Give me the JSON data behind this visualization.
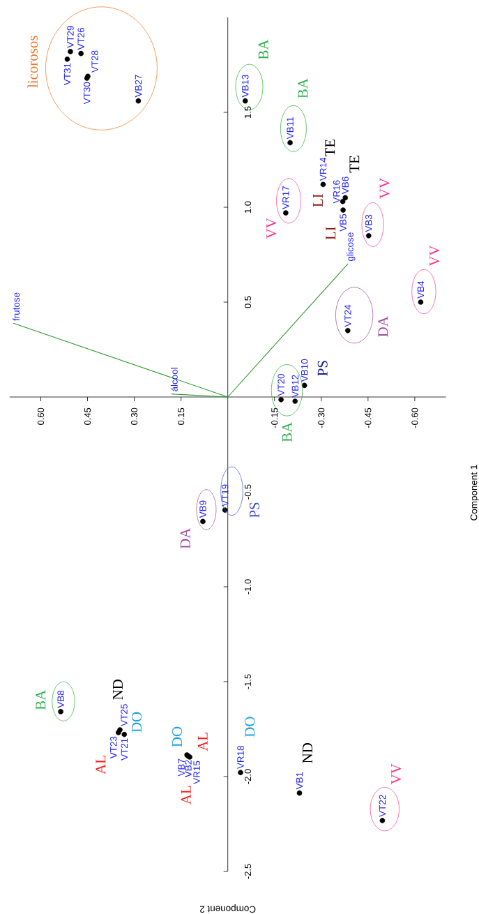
{
  "chart_data": {
    "type": "scatter",
    "xlabel": "Component 2",
    "ylabel": "Component 1",
    "xlim": [
      0.7,
      -0.7
    ],
    "ylim": [
      -2.5,
      2.0
    ],
    "xticks": [
      {
        "value": 0.6,
        "label": "0.60"
      },
      0.45,
      {
        "value": 0.3,
        "label": "0.30"
      },
      0.15,
      -0.15,
      {
        "value": -0.3,
        "label": "-0.30"
      },
      -0.45,
      {
        "value": -0.6,
        "label": "-0.60"
      }
    ],
    "yticks": [
      -2.5,
      {
        "value": -2,
        "label": "-2.0"
      },
      -1.5,
      {
        "value": -1,
        "label": "-1.0"
      },
      -0.5,
      0.5,
      {
        "value": 1,
        "label": "1.0"
      },
      1.5
    ],
    "series": [
      {
        "type": "line",
        "name": "frutose",
        "color": "#2e9a2e",
        "x": [
          0,
          0.688
        ],
        "values": [
          0,
          0.389
        ]
      },
      {
        "type": "line",
        "name": "álcool",
        "color": "#2e9a2e",
        "x": [
          0,
          0.181
        ],
        "values": [
          0,
          0.016
        ]
      },
      {
        "type": "line",
        "name": "glicose",
        "color": "#2e9a2e",
        "x": [
          0,
          -0.386
        ],
        "values": [
          0,
          0.703
        ]
      },
      {
        "color": "#000000",
        "marker": "circle",
        "x": [
          0.515,
          0.505,
          0.471,
          0.452,
          0.449,
          0.287,
          -0.056,
          -0.2,
          -0.186,
          -0.306,
          -0.369,
          -0.377,
          -0.37,
          -0.452,
          -0.619,
          -0.385,
          -0.171,
          -0.216,
          -0.246,
          0.009,
          0.08,
          0.536,
          0.346,
          0.351,
          0.332,
          0.131,
          0.127,
          0.122,
          -0.041,
          -0.23,
          -0.496
        ],
        "values": [
          1.78,
          1.82,
          1.81,
          1.68,
          1.69,
          1.56,
          1.56,
          1.34,
          0.97,
          1.12,
          1.03,
          1.05,
          0.985,
          0.85,
          0.5,
          0.35,
          -0.014,
          -0.022,
          0.061,
          -0.596,
          -0.656,
          -1.658,
          -1.754,
          -1.768,
          -1.778,
          -1.886,
          -1.892,
          -1.897,
          -1.979,
          -2.087,
          -2.232
        ]
      }
    ],
    "annotations": [
      {
        "text": "VT31",
        "x": 0.515,
        "y": 1.78
      },
      {
        "text": "VT29",
        "x": 0.505,
        "y": 1.82
      },
      {
        "text": "VT26",
        "x": 0.471,
        "y": 1.81
      },
      {
        "text": "VT30",
        "x": 0.452,
        "y": 1.68
      },
      {
        "text": "VT28",
        "x": 0.449,
        "y": 1.69
      },
      {
        "text": "VB27",
        "x": 0.287,
        "y": 1.56
      },
      {
        "text": "VB13",
        "x": -0.056,
        "y": 1.56
      },
      {
        "text": "VB11",
        "x": -0.2,
        "y": 1.34
      },
      {
        "text": "VR17",
        "x": -0.186,
        "y": 0.97
      },
      {
        "text": "VR14",
        "x": -0.306,
        "y": 1.12
      },
      {
        "text": "VR16",
        "x": -0.369,
        "y": 1.03
      },
      {
        "text": "VB6",
        "x": -0.377,
        "y": 1.05
      },
      {
        "text": "VB5",
        "x": -0.37,
        "y": 0.985
      },
      {
        "text": "VB3",
        "x": -0.452,
        "y": 0.85
      },
      {
        "text": "VB4",
        "x": -0.619,
        "y": 0.5
      },
      {
        "text": "VT24",
        "x": -0.385,
        "y": 0.35
      },
      {
        "text": "VT20",
        "x": -0.171,
        "y": -0.014
      },
      {
        "text": "VB12",
        "x": -0.216,
        "y": -0.022
      },
      {
        "text": "VB10",
        "x": -0.246,
        "y": 0.061
      },
      {
        "text": "VT19",
        "x": 0.009,
        "y": -0.596
      },
      {
        "text": "VB9",
        "x": 0.08,
        "y": -0.656
      },
      {
        "text": "VB8",
        "x": 0.536,
        "y": -1.658
      },
      {
        "text": "VT25",
        "x": 0.346,
        "y": -1.754
      },
      {
        "text": "VT23",
        "x": 0.351,
        "y": -1.768
      },
      {
        "text": "VT21",
        "x": 0.332,
        "y": -1.778
      },
      {
        "text": "VB7",
        "x": 0.131,
        "y": -1.886
      },
      {
        "text": "VB2",
        "x": 0.127,
        "y": -1.892
      },
      {
        "text": "VR15",
        "x": 0.122,
        "y": -1.897
      },
      {
        "text": "VR18",
        "x": -0.041,
        "y": -1.979
      },
      {
        "text": "VB1",
        "x": -0.23,
        "y": -2.087
      },
      {
        "text": "VT22",
        "x": -0.496,
        "y": -2.232
      },
      "licorosos",
      "BA",
      "BA",
      "TE",
      "TE",
      "LI",
      "LI",
      "VV",
      "VV",
      "VV",
      "DA",
      "PS",
      "BA",
      "PS",
      "DA",
      "BA",
      "ND",
      "DO",
      "AL",
      "DO",
      "AL",
      "AL",
      "DO",
      "ND",
      "VV"
    ]
  }
}
